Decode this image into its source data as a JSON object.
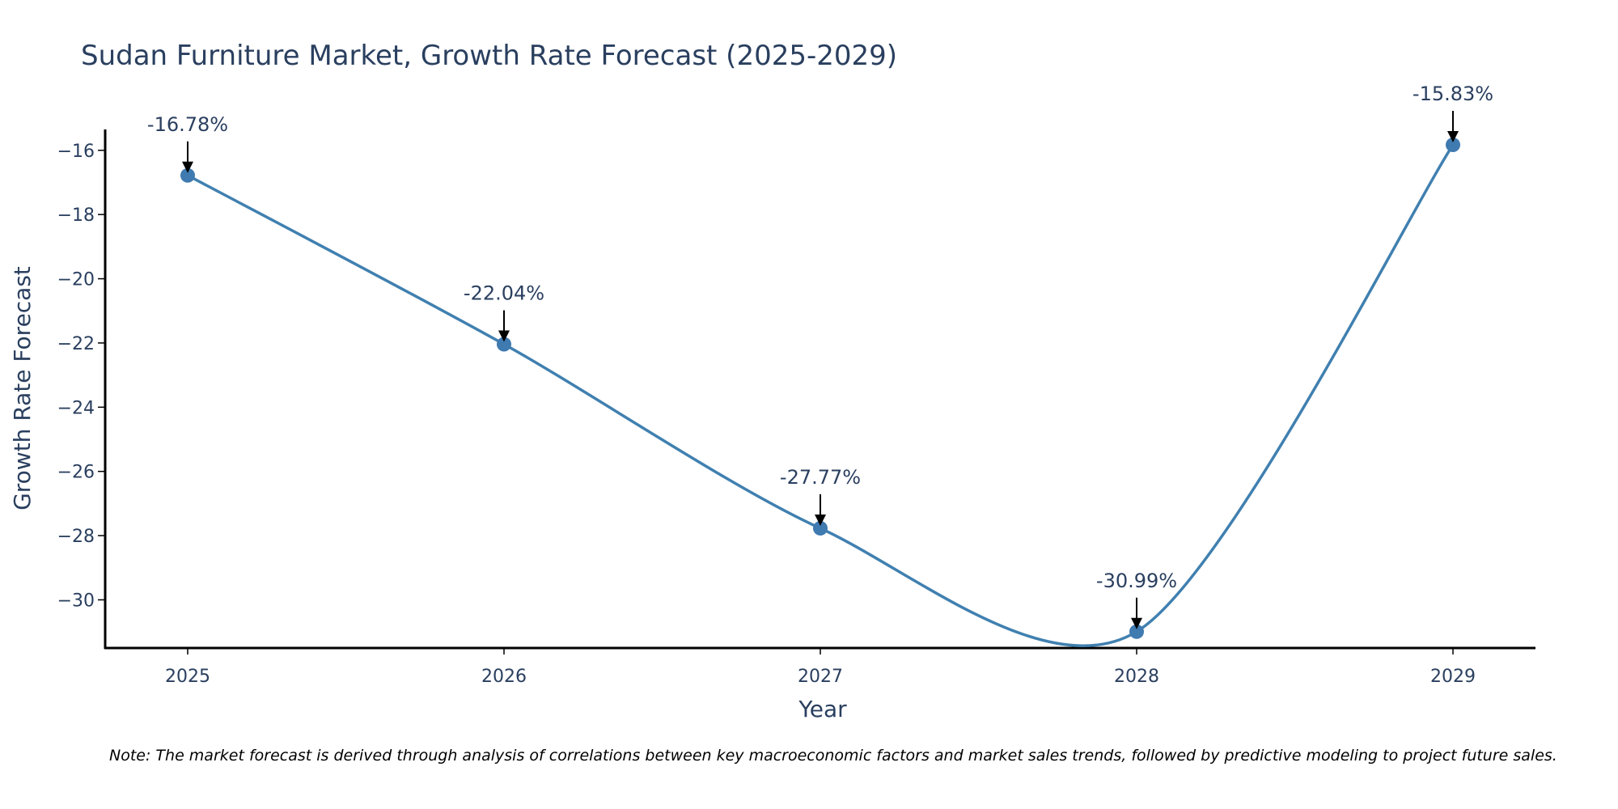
{
  "chart_data": {
    "type": "line",
    "title": "Sudan Furniture Market, Growth Rate Forecast (2025-2029)",
    "xlabel": "Year",
    "ylabel": "Growth Rate Forecast",
    "categories": [
      "2025",
      "2026",
      "2027",
      "2028",
      "2029"
    ],
    "series": [
      {
        "name": "Growth Rate Forecast",
        "values": [
          -16.78,
          -22.04,
          -27.77,
          -30.99,
          -15.83
        ],
        "labels": [
          "-16.78%",
          "-22.04%",
          "-27.77%",
          "-30.99%",
          "-15.83%"
        ]
      }
    ],
    "ylim": [
      -31.5,
      -15.35
    ],
    "yticks": [
      -16,
      -18,
      -20,
      -22,
      -24,
      -26,
      -28,
      -30
    ],
    "ytick_labels": [
      "−16",
      "−18",
      "−20",
      "−22",
      "−24",
      "−26",
      "−28",
      "−30"
    ],
    "grid": false,
    "line_shape": "spline",
    "colors": {
      "line": "#4080b0",
      "marker": "#3f7ab0",
      "text": "#2a3f5f",
      "axis": "#000000"
    }
  },
  "note": "Note: The market forecast is derived through analysis of correlations between key macroeconomic factors and market sales trends, followed by predictive modeling to project future sales."
}
